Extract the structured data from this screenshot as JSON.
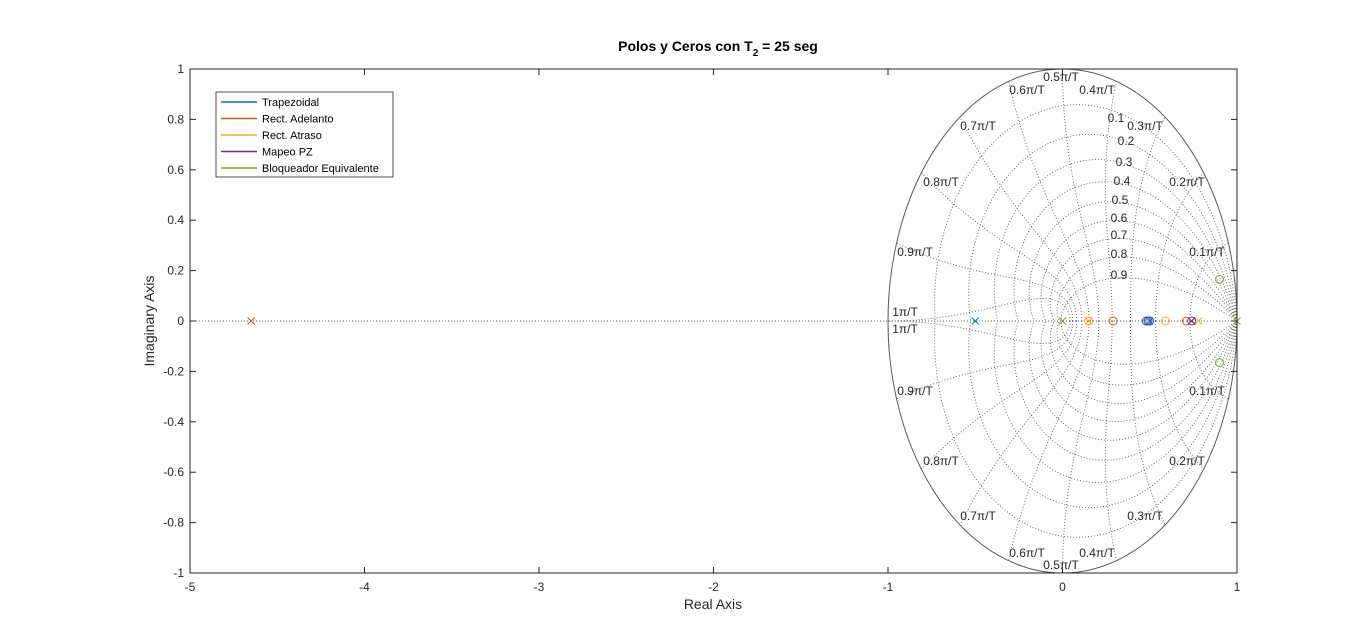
{
  "chart_data": {
    "type": "scatter",
    "title": "Polos y Ceros con T",
    "title_subscript": "2",
    "title_suffix": " = 25 seg",
    "xlabel": "Real Axis",
    "ylabel": "Imaginary Axis",
    "xlim": [
      -5,
      1
    ],
    "ylim": [
      -1,
      1
    ],
    "x_ticks": [
      "-5",
      "-4",
      "-3",
      "-2",
      "-1",
      "0",
      "1"
    ],
    "y_ticks": [
      "-1",
      "-0.8",
      "-0.6",
      "-0.4",
      "-0.2",
      "0",
      "0.2",
      "0.4",
      "0.6",
      "0.8",
      "1"
    ],
    "zgrid": {
      "unit_circle": true,
      "damping_labels": [
        "0.1",
        "0.2",
        "0.3",
        "0.4",
        "0.5",
        "0.6",
        "0.7",
        "0.8",
        "0.9"
      ],
      "wn_labels": [
        "0.1π/T",
        "0.2π/T",
        "0.3π/T",
        "0.4π/T",
        "0.5π/T",
        "0.6π/T",
        "0.7π/T",
        "0.8π/T",
        "0.9π/T",
        "1π/T"
      ]
    },
    "legend_position": "top-left",
    "series": [
      {
        "name": "Trapezoidal",
        "color": "#0072BD",
        "poles": [
          [
            -0.5,
            0
          ],
          [
            0.5,
            0
          ]
        ],
        "zeros": [
          [
            0.48,
            0
          ],
          [
            0.5,
            0
          ]
        ]
      },
      {
        "name": "Rect. Adelanto",
        "color": "#D95319",
        "poles": [
          [
            -4.65,
            0
          ],
          [
            0.74,
            0
          ]
        ],
        "zeros": [
          [
            0.29,
            0
          ],
          [
            0.71,
            0
          ]
        ]
      },
      {
        "name": "Rect. Atraso",
        "color": "#EDB120",
        "poles": [
          [
            0.15,
            0
          ],
          [
            0.78,
            0
          ]
        ],
        "zeros": [
          [
            0.15,
            0
          ],
          [
            0.59,
            0
          ]
        ]
      },
      {
        "name": "Mapeo PZ",
        "color": "#7E2F8E",
        "poles": [
          [
            0.74,
            0
          ]
        ],
        "zeros": [
          [
            0.49,
            0
          ],
          [
            0.74,
            0
          ]
        ]
      },
      {
        "name": "Bloqueador Equivalente",
        "color": "#77AC30",
        "poles": [
          [
            0.0,
            0
          ],
          [
            1.0,
            0
          ]
        ],
        "zeros": [
          [
            0.9,
            0.165
          ],
          [
            0.9,
            -0.165
          ]
        ]
      }
    ]
  }
}
